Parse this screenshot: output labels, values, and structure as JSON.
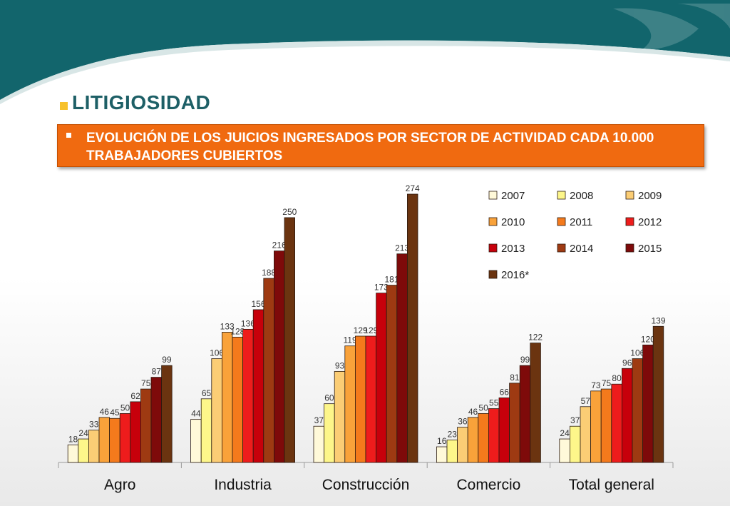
{
  "slide": {
    "title": "LITIGIOSIDAD",
    "subtitle": "EVOLUCIÓN DE LOS JUICIOS INGRESADOS POR SECTOR DE ACTIVIDAD CADA 10.000 TRABAJADORES CUBIERTOS"
  },
  "colors": {
    "teal": "#12656c",
    "title": "#1d5f66",
    "subtitle_bg": "#f06a10",
    "series": [
      "#fff9d9",
      "#fdf68a",
      "#fbcd75",
      "#f9a23a",
      "#f47a1c",
      "#ee1c1c",
      "#c7000b",
      "#9e3a12",
      "#7e0a0a",
      "#6b3410"
    ]
  },
  "chart_data": {
    "type": "bar",
    "categories": [
      "Agro",
      "Industria",
      "Construcción",
      "Comercio",
      "Total general"
    ],
    "series": [
      {
        "name": "2007",
        "values": [
          18,
          44,
          37,
          16,
          24
        ]
      },
      {
        "name": "2008",
        "values": [
          24,
          65,
          60,
          23,
          37
        ]
      },
      {
        "name": "2009",
        "values": [
          33,
          106,
          93,
          36,
          57
        ]
      },
      {
        "name": "2010",
        "values": [
          46,
          133,
          119,
          46,
          73
        ]
      },
      {
        "name": "2011",
        "values": [
          45,
          128,
          129,
          50,
          75
        ]
      },
      {
        "name": "2012",
        "values": [
          50,
          136,
          129,
          55,
          80
        ]
      },
      {
        "name": "2013",
        "values": [
          62,
          156,
          173,
          66,
          96
        ]
      },
      {
        "name": "2014",
        "values": [
          75,
          188,
          181,
          81,
          106
        ]
      },
      {
        "name": "2015",
        "values": [
          87,
          216,
          213,
          99,
          120
        ]
      },
      {
        "name": "2016*",
        "values": [
          99,
          250,
          274,
          122,
          139
        ]
      }
    ],
    "ylim": [
      0,
      274
    ],
    "grid": false,
    "legend_position": "top-right"
  }
}
